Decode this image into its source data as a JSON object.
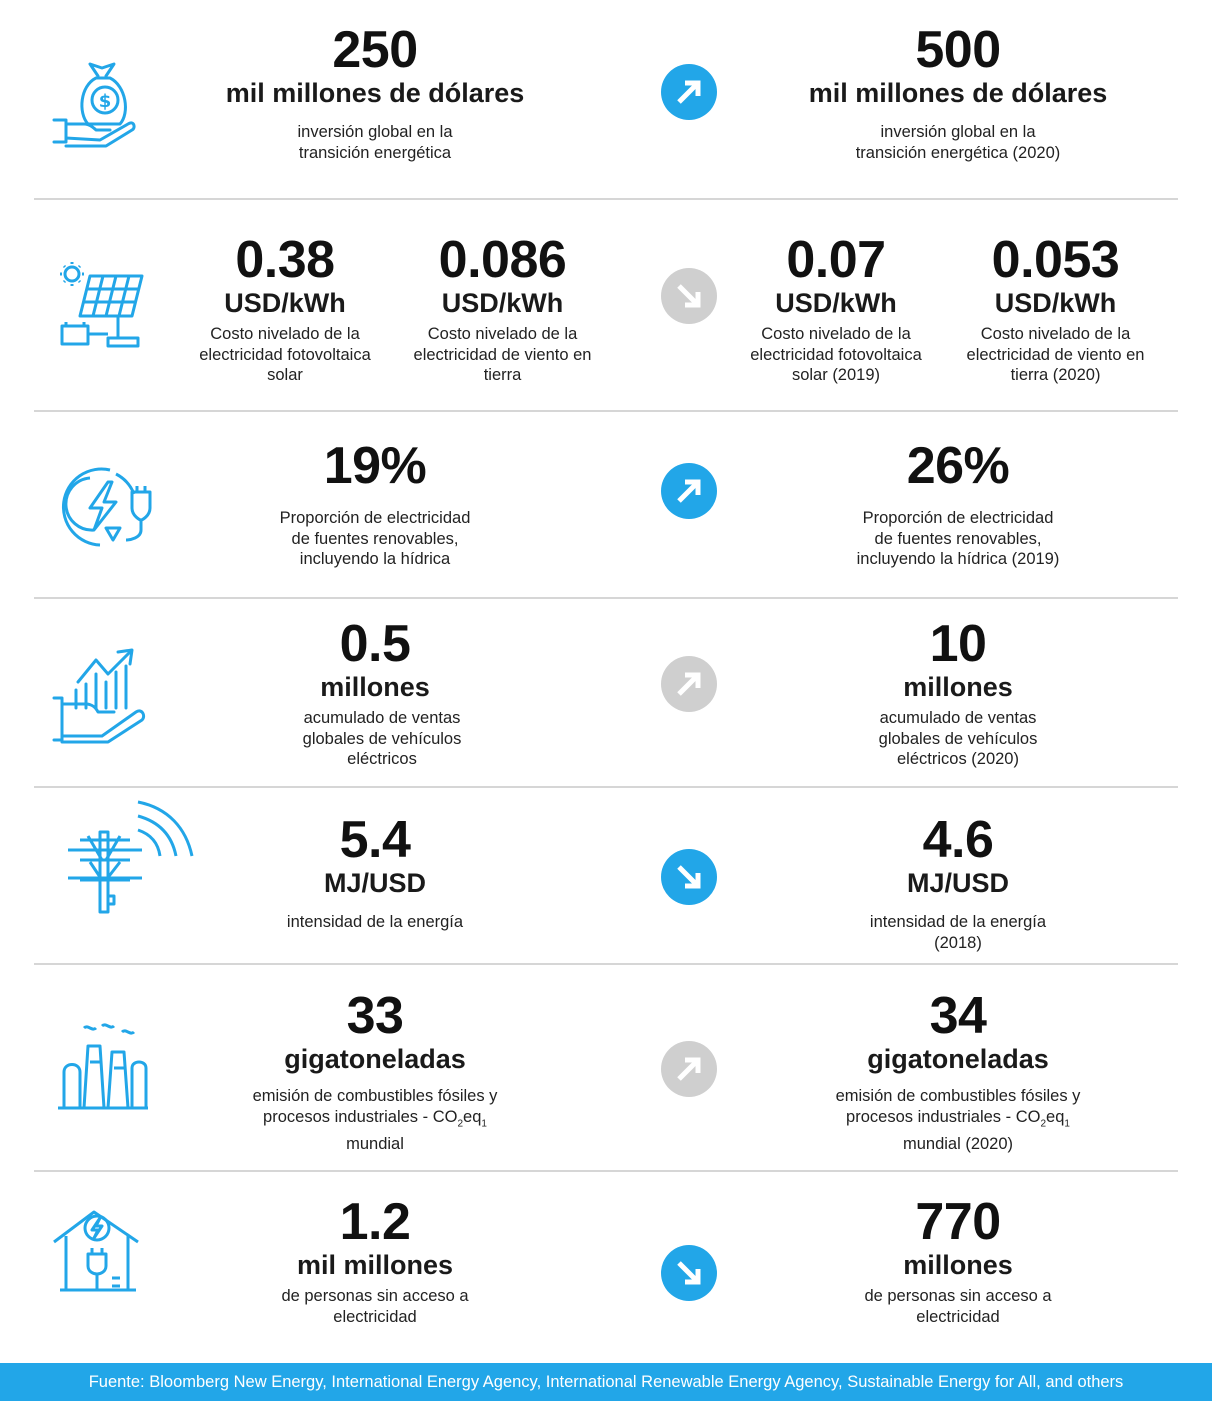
{
  "colors": {
    "accent": "#22a6e8",
    "arrow_gray": "#cfcfcf",
    "divider": "#d6d6d6"
  },
  "rows": [
    {
      "icon": "money-bag-hand-icon",
      "arrow": {
        "direction": "up",
        "color": "blue"
      },
      "left": {
        "value": "250",
        "unit": "mil millones de dólares",
        "desc": [
          "inversión global en la",
          "transición  energética"
        ]
      },
      "right": {
        "value": "500",
        "unit": "mil millones de dólares",
        "desc": [
          "inversión global en la",
          "transición  energética (2020)"
        ]
      }
    },
    {
      "icon": "solar-panel-battery-icon",
      "arrow": {
        "direction": "down",
        "color": "gray"
      },
      "left": [
        {
          "value": "0.38",
          "unit": "USD/kWh",
          "desc": [
            "Costo nivelado de la",
            "electricidad fotovoltaica",
            "solar"
          ]
        },
        {
          "value": "0.086",
          "unit": "USD/kWh",
          "desc": [
            "Costo nivelado de la",
            "electricidad de viento en",
            "tierra"
          ]
        }
      ],
      "right": [
        {
          "value": "0.07",
          "unit": "USD/kWh",
          "desc": [
            "Costo nivelado de la",
            "electricidad fotovoltaica",
            "solar (2019)"
          ]
        },
        {
          "value": "0.053",
          "unit": "USD/kWh",
          "desc": [
            "Costo nivelado de la",
            "electricidad de viento en",
            "tierra (2020)"
          ]
        }
      ]
    },
    {
      "icon": "renewable-electricity-plug-icon",
      "arrow": {
        "direction": "up",
        "color": "blue"
      },
      "left": {
        "value": "19%",
        "desc": [
          "Proporción de electricidad",
          "de fuentes renovables,",
          "incluyendo la hídrica"
        ]
      },
      "right": {
        "value": "26%",
        "desc": [
          "Proporción de electricidad",
          "de fuentes renovables,",
          "incluyendo la hídrica (2019)"
        ]
      }
    },
    {
      "icon": "growth-chart-hand-icon",
      "arrow": {
        "direction": "up",
        "color": "gray"
      },
      "left": {
        "value": "0.5",
        "unit": "millones",
        "desc": [
          "acumulado de ventas",
          "globales de vehículos",
          "eléctricos"
        ]
      },
      "right": {
        "value": "10",
        "unit": "millones",
        "desc": [
          "acumulado de ventas",
          "globales de vehículos",
          "eléctricos (2020)"
        ]
      }
    },
    {
      "icon": "power-pole-signal-icon",
      "arrow": {
        "direction": "down",
        "color": "blue"
      },
      "left": {
        "value": "5.4",
        "unit": "MJ/USD",
        "desc": [
          "intensidad de la energía"
        ]
      },
      "right": {
        "value": "4.6",
        "unit": "MJ/USD",
        "desc": [
          "intensidad de la energía",
          "(2018)"
        ]
      }
    },
    {
      "icon": "factory-emissions-icon",
      "arrow": {
        "direction": "up",
        "color": "gray"
      },
      "left": {
        "value": "33",
        "unit": "gigatoneladas",
        "desc1": "emisión de combustibles fósiles y",
        "desc2_pre": "procesos industriales - CO",
        "sub2": "2",
        "desc2_mid": "eq",
        "sub1": "1",
        "desc3": "mundial"
      },
      "right": {
        "value": "34",
        "unit": "gigatoneladas",
        "desc1": "emisión de combustibles fósiles y",
        "desc2_pre": "procesos industriales - CO",
        "sub2": "2",
        "desc2_mid": "eq",
        "sub1": "1",
        "desc3": "mundial (2020)"
      }
    },
    {
      "icon": "house-electricity-plug-icon",
      "arrow": {
        "direction": "down",
        "color": "blue"
      },
      "left": {
        "value": "1.2",
        "unit": "mil millones",
        "desc": [
          "de personas sin acceso a",
          "electricidad"
        ]
      },
      "right": {
        "value": "770",
        "unit": "millones",
        "desc": [
          "de personas sin acceso a",
          "electricidad"
        ]
      }
    }
  ],
  "footer": "Fuente: Bloomberg New Energy, International Energy Agency, International Renewable Energy Agency, Sustainable Energy for All, and others"
}
